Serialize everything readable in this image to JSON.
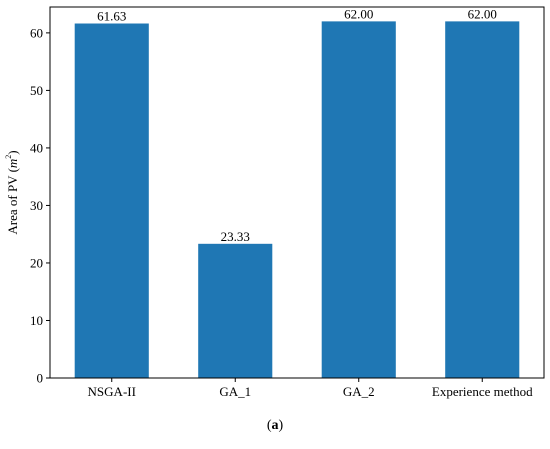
{
  "chart_data": {
    "type": "bar",
    "categories": [
      "NSGA-II",
      "GA_1",
      "GA_2",
      "Experience method"
    ],
    "values": [
      61.63,
      23.33,
      62.0,
      62.0
    ],
    "data_labels": [
      "61.63",
      "23.33",
      "62.00",
      "62.00"
    ],
    "title": "",
    "xlabel": "",
    "ylabel_main": "Area of PV (",
    "ylabel_unit": "m",
    "ylabel_sup": "2",
    "ylabel_close": ")",
    "ylim": [
      0,
      64.5
    ],
    "yticks": [
      0,
      10,
      20,
      30,
      40,
      50,
      60
    ],
    "grid": false,
    "bar_color": "#1f77b4"
  },
  "caption": {
    "open": "(",
    "letter": "a",
    "close": ")"
  }
}
